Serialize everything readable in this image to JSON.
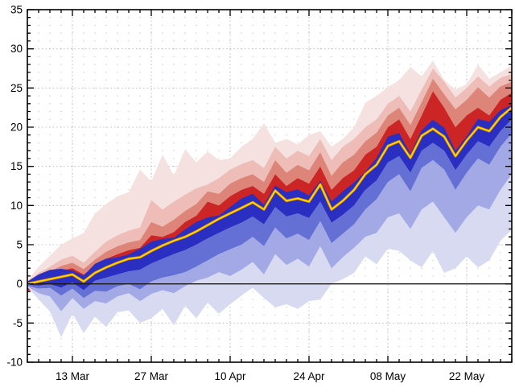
{
  "figure": {
    "background": "#ffffff",
    "title": ""
  },
  "chart_data": {
    "type": "area",
    "subtype": "ensemble-quantile-plume",
    "description": "Ensemble plume: yellow median line with red quantile bands above and blue quantile bands below, 05 Mar to 30 May",
    "x_unit": "days since 05 Mar",
    "day_range": [
      0,
      86
    ],
    "ylim": [
      -10,
      35
    ],
    "yticks": {
      "major_values": [
        35,
        30,
        25,
        20,
        15,
        10,
        5,
        0,
        -5,
        -10
      ],
      "labels": [
        "35",
        "30",
        "25",
        "20",
        "15",
        "10",
        "5",
        "0",
        "-5",
        "-10"
      ],
      "minor_step": 1,
      "major_step": 5
    },
    "xticks": {
      "minor_step_days": 2,
      "major_step_days": 14,
      "major_labels": [
        {
          "label": "13 Mar",
          "day": 8
        },
        {
          "label": "27 Mar",
          "day": 22
        },
        {
          "label": "10 Apr",
          "day": 36
        },
        {
          "label": "24 Apr",
          "day": 50
        },
        {
          "label": "08 May",
          "day": 64
        },
        {
          "label": "22 May",
          "day": 78
        }
      ]
    },
    "days": [
      0,
      2,
      4,
      6,
      8,
      10,
      12,
      14,
      16,
      18,
      20,
      22,
      24,
      26,
      28,
      30,
      32,
      34,
      36,
      38,
      40,
      42,
      44,
      46,
      48,
      50,
      52,
      54,
      56,
      58,
      60,
      62,
      64,
      66,
      68,
      70,
      72,
      74,
      76,
      78,
      80,
      82,
      84,
      86
    ],
    "series": [
      {
        "name": "max",
        "values": [
          0.4,
          2.2,
          3.6,
          5.0,
          5.8,
          6.5,
          9.0,
          10.2,
          11.2,
          11.7,
          14.6,
          13.1,
          16.5,
          13.8,
          17.2,
          15.5,
          16.9,
          15.8,
          16.0,
          17.5,
          18.5,
          20.5,
          18.0,
          18.5,
          17.8,
          19.0,
          19.5,
          17.5,
          18.5,
          20.0,
          23.1,
          24.0,
          25.1,
          26.0,
          27.7,
          26.5,
          28.5,
          26.0,
          24.8,
          25.5,
          28.0,
          26.2,
          27.0,
          27.9
        ]
      },
      {
        "name": "p90",
        "values": [
          0.3,
          1.4,
          2.2,
          3.1,
          3.6,
          2.7,
          4.1,
          5.4,
          6.2,
          6.8,
          7.2,
          10.7,
          9.5,
          10.5,
          11.4,
          12.2,
          12.7,
          13.5,
          14.6,
          15.3,
          15.8,
          14.8,
          17.5,
          16.0,
          17.0,
          16.3,
          18.5,
          15.8,
          17.5,
          18.5,
          20.0,
          21.0,
          23.0,
          24.0,
          22.0,
          24.8,
          27.5,
          25.8,
          23.8,
          25.0,
          26.5,
          25.2,
          26.3,
          26.8
        ]
      },
      {
        "name": "p80",
        "values": [
          0.2,
          1.0,
          1.6,
          2.3,
          2.7,
          1.9,
          3.1,
          4.1,
          4.8,
          5.3,
          5.6,
          7.9,
          7.3,
          8.2,
          9.3,
          10.2,
          11.8,
          11.5,
          12.8,
          13.5,
          14.0,
          13.0,
          15.8,
          14.2,
          15.2,
          14.5,
          16.8,
          13.8,
          15.5,
          16.5,
          18.2,
          19.3,
          21.5,
          22.5,
          20.3,
          23.2,
          26.2,
          24.2,
          22.3,
          23.5,
          25.1,
          23.8,
          25.2,
          25.8
        ]
      },
      {
        "name": "p65",
        "values": [
          0.1,
          0.7,
          1.2,
          1.7,
          2.0,
          1.2,
          2.3,
          3.2,
          3.8,
          4.3,
          4.6,
          6.2,
          6.0,
          6.6,
          7.9,
          8.7,
          10.5,
          10.0,
          11.2,
          12.0,
          12.5,
          11.5,
          14.0,
          12.5,
          13.5,
          12.8,
          15.0,
          12.0,
          13.5,
          14.5,
          16.5,
          17.5,
          20.0,
          21.0,
          18.5,
          21.5,
          24.6,
          22.5,
          20.0,
          21.5,
          22.5,
          21.5,
          23.5,
          24.4
        ]
      },
      {
        "name": "median",
        "values": [
          0.0,
          0.3,
          0.6,
          0.9,
          1.2,
          0.3,
          1.4,
          2.1,
          2.7,
          3.2,
          3.4,
          4.2,
          4.9,
          5.5,
          6.0,
          6.7,
          7.5,
          8.3,
          9.0,
          9.7,
          10.4,
          9.5,
          11.9,
          10.6,
          10.9,
          10.5,
          12.7,
          9.5,
          10.6,
          12.0,
          14.0,
          15.2,
          17.6,
          18.2,
          16.1,
          18.9,
          19.8,
          18.8,
          16.3,
          18.3,
          20.0,
          19.5,
          21.3,
          22.5
        ]
      },
      {
        "name": "p35",
        "values": [
          -0.1,
          -0.2,
          0.0,
          -0.5,
          0.2,
          -0.8,
          0.4,
          0.8,
          1.2,
          1.6,
          1.8,
          2.6,
          3.2,
          3.8,
          4.3,
          5.0,
          5.8,
          6.5,
          7.2,
          7.8,
          8.6,
          7.6,
          9.8,
          8.6,
          9.0,
          8.4,
          10.5,
          7.8,
          8.8,
          10.0,
          12.0,
          13.2,
          15.5,
          16.3,
          14.2,
          17.0,
          18.0,
          17.0,
          14.5,
          16.5,
          18.2,
          17.5,
          19.5,
          21.0
        ]
      },
      {
        "name": "p20",
        "values": [
          -0.2,
          -0.6,
          -0.5,
          -1.5,
          -0.6,
          -1.8,
          -0.9,
          -1.0,
          -0.3,
          0.0,
          -0.7,
          0.3,
          0.8,
          1.1,
          1.5,
          2.2,
          3.0,
          3.8,
          4.4,
          5.0,
          6.0,
          4.8,
          7.2,
          5.8,
          6.4,
          5.6,
          8.0,
          5.2,
          6.4,
          7.6,
          9.5,
          10.8,
          13.0,
          14.0,
          11.8,
          14.8,
          15.8,
          14.6,
          12.0,
          14.2,
          16.0,
          15.2,
          17.5,
          19.2
        ]
      },
      {
        "name": "p10",
        "values": [
          -0.3,
          -1.2,
          -1.6,
          -3.5,
          -1.8,
          -3.2,
          -2.2,
          -2.5,
          -1.6,
          -1.2,
          -2.2,
          -1.3,
          -0.8,
          -1.2,
          -0.3,
          0.4,
          0.8,
          1.5,
          1.0,
          1.8,
          2.8,
          1.2,
          3.8,
          2.4,
          3.2,
          2.2,
          4.8,
          2.0,
          3.4,
          4.6,
          6.0,
          6.5,
          8.5,
          9.0,
          7.0,
          9.5,
          10.5,
          8.5,
          6.5,
          8.5,
          10.0,
          9.5,
          12.0,
          14.0
        ]
      },
      {
        "name": "min",
        "values": [
          -0.4,
          -2.0,
          -3.5,
          -6.8,
          -3.8,
          -6.3,
          -4.2,
          -5.5,
          -3.6,
          -3.4,
          -5.0,
          -4.4,
          -3.2,
          -5.3,
          -2.8,
          -4.4,
          -2.4,
          -3.8,
          -2.6,
          -1.5,
          -0.5,
          -1.8,
          -3.0,
          -2.6,
          -3.2,
          -2.2,
          -2.0,
          0.0,
          0.6,
          1.4,
          3.5,
          2.5,
          4.5,
          4.2,
          3.0,
          2.1,
          4.2,
          1.4,
          2.0,
          3.5,
          2.1,
          3.0,
          5.5,
          6.9
        ]
      }
    ],
    "colors": {
      "red_bands_outer_to_inner": [
        "#f5e2e0",
        "#eebdb8",
        "#dd8578",
        "#cc2525"
      ],
      "blue_bands_outer_to_inner": [
        "#d7daf1",
        "#a2a9e5",
        "#6470d4",
        "#2a2fc2"
      ],
      "median_line": "#ffd800",
      "median_halo": "#e08a00",
      "zero_line": "#1a1a1a",
      "frame": "#000000",
      "grid_dot": "#c0c0c0",
      "grid_dash": "#b5b5b5",
      "tick_label": "#000000"
    },
    "legend": {
      "visible": false
    },
    "zero_baseline": true,
    "grid": "dotted"
  }
}
